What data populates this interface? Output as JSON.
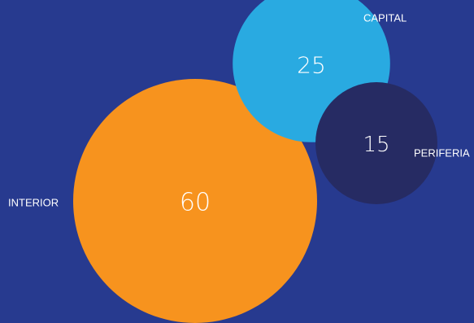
{
  "chart_data": {
    "type": "bubble",
    "background": "#273a8f",
    "series": [
      {
        "label": "INTERIOR",
        "value": 60,
        "value_label": "60",
        "color": "#f7931e"
      },
      {
        "label": "CAPITAL",
        "value": 25,
        "value_label": "25",
        "color": "#29aae1"
      },
      {
        "label": "PERIFERIA",
        "value": 15,
        "value_label": "15",
        "color": "#262b63"
      }
    ]
  }
}
